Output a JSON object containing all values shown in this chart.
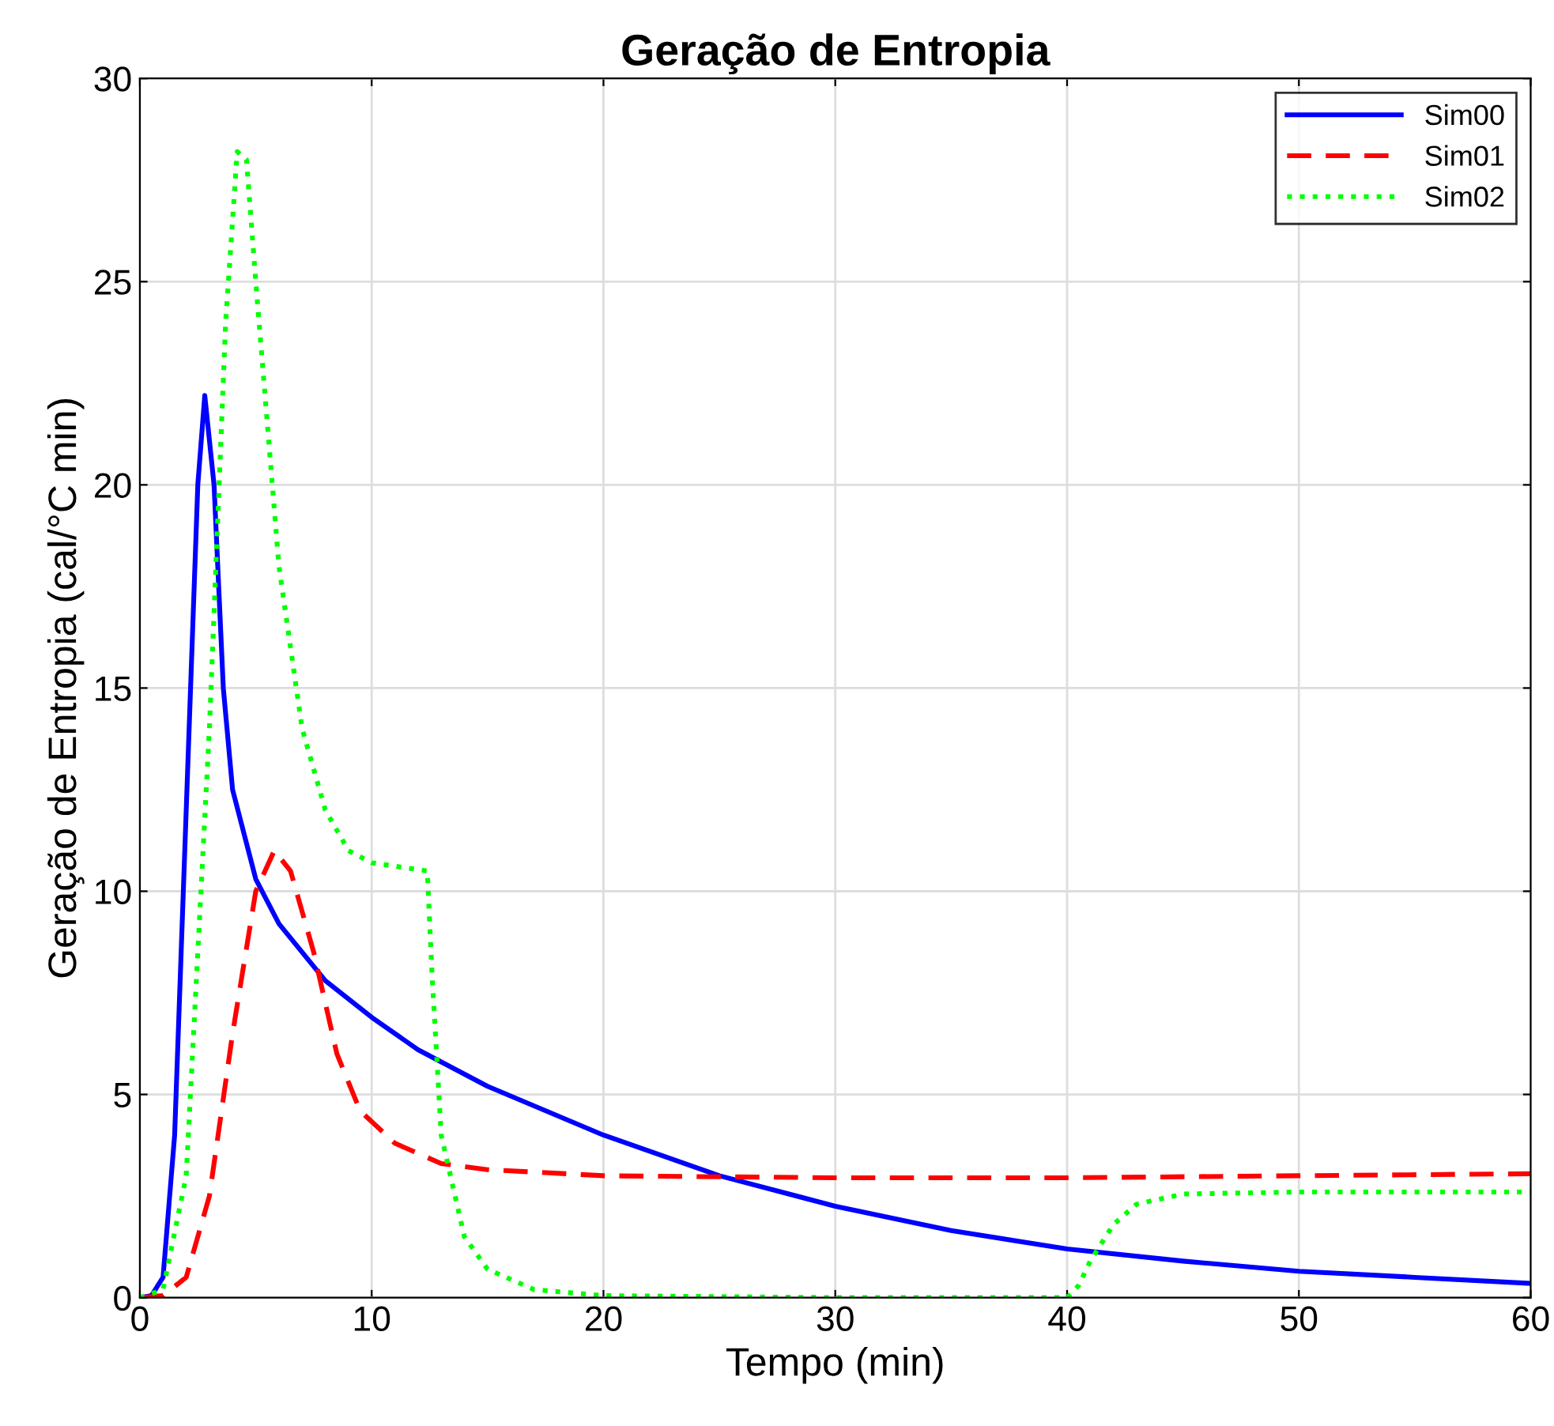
{
  "chart_data": {
    "type": "line",
    "title": "Geração de Entropia",
    "xlabel": "Tempo (min)",
    "ylabel": "Geração de Entropia (cal/°C min)",
    "xlim": [
      0,
      60
    ],
    "ylim": [
      0,
      30
    ],
    "xticks": [
      0,
      10,
      20,
      30,
      40,
      50,
      60
    ],
    "yticks": [
      0,
      5,
      10,
      15,
      20,
      25,
      30
    ],
    "grid": true,
    "legend": "top right",
    "series": [
      {
        "name": "Sim00",
        "color": "#0000ff",
        "line_style": "solid",
        "x": [
          0,
          0.5,
          1,
          1.5,
          2,
          2.5,
          2.8,
          3.2,
          3.6,
          4,
          5,
          6,
          8,
          10,
          12,
          15,
          20,
          25,
          30,
          35,
          40,
          45,
          50,
          55,
          60
        ],
        "values": [
          0,
          0.05,
          0.5,
          4,
          12,
          20,
          22.2,
          20,
          15,
          12.5,
          10.3,
          9.2,
          7.8,
          6.9,
          6.1,
          5.2,
          4.0,
          3.0,
          2.25,
          1.65,
          1.2,
          0.9,
          0.65,
          0.5,
          0.35
        ]
      },
      {
        "name": "Sim01",
        "color": "#ff0000",
        "line_style": "dashed",
        "x": [
          0,
          1,
          2,
          3,
          4,
          5,
          5.8,
          6.5,
          7.5,
          8.5,
          9.5,
          11,
          13,
          15,
          20,
          30,
          40,
          50,
          60
        ],
        "values": [
          0,
          0.05,
          0.5,
          2.5,
          6.5,
          10,
          11,
          10.5,
          8.5,
          6,
          4.6,
          3.8,
          3.3,
          3.15,
          3.0,
          2.95,
          2.95,
          3.0,
          3.05
        ]
      },
      {
        "name": "Sim02",
        "color": "#00ff00",
        "line_style": "dotted",
        "x": [
          0,
          1,
          2,
          3,
          3.7,
          4.2,
          4.6,
          5,
          6,
          7,
          8,
          9,
          10,
          12.4,
          12.6,
          13,
          14,
          15,
          17,
          20,
          30,
          40,
          40.5,
          41,
          42,
          43,
          45,
          50,
          60
        ],
        "values": [
          0,
          0.2,
          3,
          14,
          24,
          28.2,
          28,
          25,
          18,
          14,
          12,
          11,
          10.7,
          10.5,
          8,
          4,
          1.5,
          0.7,
          0.2,
          0.05,
          0,
          0,
          0.3,
          0.9,
          1.8,
          2.3,
          2.55,
          2.6,
          2.6
        ]
      }
    ]
  }
}
